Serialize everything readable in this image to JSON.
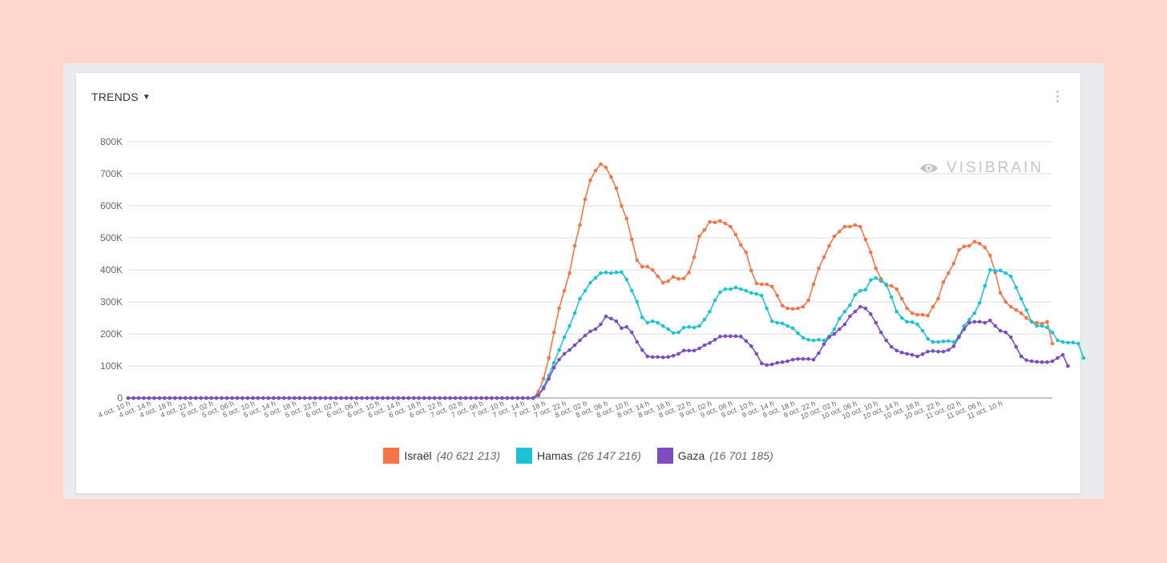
{
  "card": {
    "title": "TRENDS",
    "watermark": "VISIBRAIN"
  },
  "chart_data": {
    "type": "line",
    "ylim": [
      0,
      800000
    ],
    "yticks": [
      {
        "value": 0,
        "label": "0"
      },
      {
        "value": 100000,
        "label": "100K"
      },
      {
        "value": 200000,
        "label": "200K"
      },
      {
        "value": 300000,
        "label": "300K"
      },
      {
        "value": 400000,
        "label": "400K"
      },
      {
        "value": 500000,
        "label": "500K"
      },
      {
        "value": 600000,
        "label": "600K"
      },
      {
        "value": 700000,
        "label": "700K"
      },
      {
        "value": 800000,
        "label": "800K"
      }
    ],
    "xticks": [
      "4 oct. 10 h",
      "4 oct. 14 h",
      "4 oct. 18 h",
      "4 oct. 22 h",
      "5 oct. 02 h",
      "5 oct. 06 h",
      "5 oct. 10 h",
      "5 oct. 14 h",
      "5 oct. 18 h",
      "5 oct. 22 h",
      "6 oct. 02 h",
      "6 oct. 06 h",
      "6 oct. 10 h",
      "6 oct. 14 h",
      "6 oct. 18 h",
      "6 oct. 22 h",
      "7 oct. 02 h",
      "7 oct. 06 h",
      "7 oct. 10 h",
      "7 oct. 14 h",
      "7 oct. 18 h",
      "7 oct. 22 h",
      "8 oct. 02 h",
      "8 oct. 06 h",
      "8 oct. 10 h",
      "8 oct. 14 h",
      "8 oct. 18 h",
      "8 oct. 22 h",
      "9 oct. 02 h",
      "9 oct. 06 h",
      "9 oct. 10 h",
      "9 oct. 14 h",
      "9 oct. 18 h",
      "9 oct. 22 h",
      "10 oct. 02 h",
      "10 oct. 06 h",
      "10 oct. 10 h",
      "10 oct. 14 h",
      "10 oct. 18 h",
      "10 oct. 22 h",
      "11 oct. 02 h",
      "11 oct. 06 h",
      "11 oct. 10 h"
    ],
    "grid": true,
    "legend_position": "bottom-center",
    "series": [
      {
        "name": "Israël",
        "total": "(40 621 213)",
        "color": "#f5754a",
        "values": [
          0,
          0,
          0,
          0,
          0,
          0,
          0,
          0,
          0,
          0,
          0,
          0,
          0,
          0,
          0,
          0,
          0,
          0,
          0,
          0,
          0,
          0,
          0,
          0,
          0,
          0,
          0,
          0,
          0,
          0,
          0,
          0,
          0,
          0,
          0,
          0,
          0,
          0,
          0,
          0,
          0,
          0,
          0,
          0,
          0,
          0,
          0,
          0,
          0,
          0,
          0,
          0,
          0,
          0,
          0,
          0,
          0,
          0,
          0,
          0,
          0,
          0,
          0,
          0,
          0,
          0,
          0,
          0,
          0,
          0,
          0,
          0,
          0,
          0,
          0,
          0,
          0,
          0,
          0,
          20000,
          60000,
          125000,
          205000,
          280000,
          335000,
          390000,
          475000,
          540000,
          620000,
          680000,
          710000,
          730000,
          720000,
          690000,
          655000,
          600000,
          560000,
          495000,
          430000,
          410000,
          410000,
          400000,
          380000,
          360000,
          365000,
          378000,
          372000,
          373000,
          392000,
          440000,
          505000,
          525000,
          550000,
          548000,
          553000,
          545000,
          535000,
          510000,
          478000,
          455000,
          398000,
          358000,
          355000,
          355000,
          348000,
          320000,
          288000,
          280000,
          278000,
          280000,
          285000,
          305000,
          355000,
          405000,
          440000,
          475000,
          505000,
          520000,
          535000,
          535000,
          540000,
          535000,
          495000,
          455000,
          405000,
          372000,
          352000,
          350000,
          340000,
          310000,
          280000,
          265000,
          260000,
          260000,
          257000,
          285000,
          310000,
          362000,
          390000,
          420000,
          462000,
          473000,
          475000,
          488000,
          482000,
          470000,
          445000,
          392000,
          328000,
          300000,
          285000,
          275000,
          265000,
          250000,
          238000,
          235000,
          232000,
          238000,
          170000
        ]
      },
      {
        "name": "Hamas",
        "total": "(26 147 216)",
        "color": "#1ec2d6",
        "values": [
          0,
          0,
          0,
          0,
          0,
          0,
          0,
          0,
          0,
          0,
          0,
          0,
          0,
          0,
          0,
          0,
          0,
          0,
          0,
          0,
          0,
          0,
          0,
          0,
          0,
          0,
          0,
          0,
          0,
          0,
          0,
          0,
          0,
          0,
          0,
          0,
          0,
          0,
          0,
          0,
          0,
          0,
          0,
          0,
          0,
          0,
          0,
          0,
          0,
          0,
          0,
          0,
          0,
          0,
          0,
          0,
          0,
          0,
          0,
          0,
          0,
          0,
          0,
          0,
          0,
          0,
          0,
          0,
          0,
          0,
          0,
          0,
          0,
          0,
          0,
          0,
          0,
          0,
          0,
          10000,
          35000,
          70000,
          110000,
          150000,
          190000,
          225000,
          265000,
          310000,
          335000,
          360000,
          375000,
          390000,
          392000,
          390000,
          392000,
          393000,
          370000,
          335000,
          300000,
          252000,
          235000,
          240000,
          235000,
          225000,
          215000,
          203000,
          205000,
          220000,
          222000,
          220000,
          225000,
          245000,
          270000,
          305000,
          330000,
          340000,
          340000,
          345000,
          340000,
          335000,
          328000,
          325000,
          320000,
          280000,
          240000,
          235000,
          233000,
          225000,
          218000,
          202000,
          188000,
          182000,
          180000,
          182000,
          180000,
          192000,
          215000,
          248000,
          270000,
          290000,
          322000,
          335000,
          338000,
          368000,
          375000,
          365000,
          355000,
          315000,
          270000,
          250000,
          238000,
          237000,
          230000,
          210000,
          185000,
          175000,
          175000,
          177000,
          178000,
          175000,
          193000,
          225000,
          245000,
          265000,
          297000,
          350000,
          400000,
          397000,
          398000,
          390000,
          380000,
          345000,
          310000,
          275000,
          238000,
          225000,
          225000,
          220000,
          205000,
          180000,
          175000,
          173000,
          173000,
          170000,
          125000
        ]
      },
      {
        "name": "Gaza",
        "total": "(16 701 185)",
        "color": "#7b4dbf",
        "values": [
          0,
          0,
          0,
          0,
          0,
          0,
          0,
          0,
          0,
          0,
          0,
          0,
          0,
          0,
          0,
          0,
          0,
          0,
          0,
          0,
          0,
          0,
          0,
          0,
          0,
          0,
          0,
          0,
          0,
          0,
          0,
          0,
          0,
          0,
          0,
          0,
          0,
          0,
          0,
          0,
          0,
          0,
          0,
          0,
          0,
          0,
          0,
          0,
          0,
          0,
          0,
          0,
          0,
          0,
          0,
          0,
          0,
          0,
          0,
          0,
          0,
          0,
          0,
          0,
          0,
          0,
          0,
          0,
          0,
          0,
          0,
          0,
          0,
          0,
          0,
          0,
          0,
          0,
          0,
          8000,
          30000,
          60000,
          95000,
          120000,
          138000,
          150000,
          165000,
          180000,
          195000,
          208000,
          215000,
          230000,
          255000,
          248000,
          240000,
          218000,
          222000,
          205000,
          175000,
          150000,
          130000,
          128000,
          128000,
          127000,
          128000,
          132000,
          138000,
          148000,
          148000,
          148000,
          155000,
          165000,
          172000,
          182000,
          192000,
          193000,
          193000,
          193000,
          192000,
          178000,
          162000,
          138000,
          108000,
          103000,
          105000,
          110000,
          112000,
          115000,
          120000,
          122000,
          122000,
          122000,
          120000,
          140000,
          168000,
          190000,
          200000,
          215000,
          230000,
          255000,
          270000,
          285000,
          280000,
          262000,
          235000,
          205000,
          180000,
          160000,
          148000,
          142000,
          138000,
          135000,
          130000,
          137000,
          145000,
          147000,
          145000,
          145000,
          150000,
          162000,
          190000,
          215000,
          235000,
          238000,
          238000,
          235000,
          242000,
          225000,
          210000,
          205000,
          190000,
          160000,
          130000,
          118000,
          115000,
          113000,
          112000,
          112000,
          115000,
          125000,
          135000,
          100000
        ]
      }
    ]
  }
}
